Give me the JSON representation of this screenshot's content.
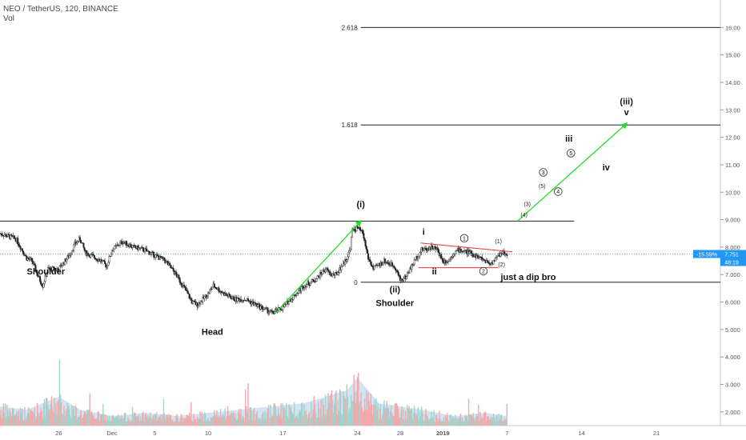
{
  "header": {
    "title": "NEO / TetherUS, 120, BINANCE",
    "indicator": "Vol"
  },
  "colors": {
    "up": "#26a69a",
    "down": "#222222",
    "fib": "#000000",
    "green_arrow": "#22dd22",
    "red_line": "#e53935",
    "price_badge": "#2196f3",
    "volume_area": "#c9dcf0",
    "vol_up": "#9fd4cf",
    "vol_down": "#f3a9a9"
  },
  "price_badges": {
    "change": "-15.59%",
    "price": "7.751",
    "countdown": "48:19"
  },
  "chart_data": {
    "type": "candlestick",
    "xlabel": "",
    "ylabel": "",
    "ylim": [
      1.5,
      17
    ],
    "yticks": [
      "2.000",
      "3.000",
      "4.000",
      "5.000",
      "6.000",
      "7.000",
      "8.000",
      "9.000",
      "10.00",
      "11.00",
      "12.00",
      "13.00",
      "14.00",
      "15.00",
      "16.00"
    ],
    "ytick_values": [
      2,
      3,
      4,
      5,
      6,
      7,
      8,
      9,
      10,
      11,
      12,
      13,
      14,
      15,
      16
    ],
    "xticks": [
      "26",
      "Dec",
      "5",
      "10",
      "17",
      "24",
      "28",
      "2019",
      "7",
      "14",
      "21"
    ],
    "xtick_days": [
      -5,
      0,
      4,
      9,
      16,
      23,
      27,
      31,
      37,
      44,
      51
    ],
    "xlim_days": [
      -10.5,
      57
    ],
    "price_path": [
      [
        -10.5,
        8.5
      ],
      [
        -9,
        8.3
      ],
      [
        -8,
        7.6
      ],
      [
        -7.5,
        7.5
      ],
      [
        -7,
        7.0
      ],
      [
        -6.5,
        6.6
      ],
      [
        -6,
        7.2
      ],
      [
        -5,
        7.2
      ],
      [
        -4,
        7.7
      ],
      [
        -3.5,
        8.1
      ],
      [
        -3,
        8.3
      ],
      [
        -2.5,
        7.8
      ],
      [
        -1,
        7.5
      ],
      [
        -0.5,
        7.3
      ],
      [
        0,
        7.9
      ],
      [
        1,
        8.2
      ],
      [
        2,
        8.0
      ],
      [
        3,
        7.9
      ],
      [
        4,
        7.7
      ],
      [
        5,
        7.5
      ],
      [
        6,
        7.0
      ],
      [
        6.8,
        6.5
      ],
      [
        7.5,
        6.0
      ],
      [
        8,
        5.9
      ],
      [
        9,
        6.3
      ],
      [
        9.5,
        6.6
      ],
      [
        10.5,
        6.3
      ],
      [
        11.5,
        6.1
      ],
      [
        12.5,
        6.1
      ],
      [
        13.5,
        5.9
      ],
      [
        15,
        5.6
      ],
      [
        16,
        5.8
      ],
      [
        17,
        6.2
      ],
      [
        18,
        6.6
      ],
      [
        19,
        6.8
      ],
      [
        20,
        7.2
      ],
      [
        20.5,
        7.0
      ],
      [
        21,
        7.0
      ],
      [
        21.5,
        7.3
      ],
      [
        22,
        7.6
      ],
      [
        22.3,
        7.9
      ],
      [
        22.5,
        8.6
      ],
      [
        23,
        8.7
      ],
      [
        23.5,
        8.5
      ],
      [
        24,
        7.6
      ],
      [
        24.5,
        7.2
      ],
      [
        25.5,
        7.5
      ],
      [
        26.5,
        7.3
      ],
      [
        27,
        6.8
      ],
      [
        27.5,
        6.9
      ],
      [
        28.5,
        7.6
      ],
      [
        29,
        7.9
      ],
      [
        30,
        8.0
      ],
      [
        30.5,
        7.9
      ],
      [
        31,
        7.5
      ],
      [
        31.5,
        7.5
      ],
      [
        32,
        7.8
      ],
      [
        32.5,
        7.9
      ],
      [
        33.5,
        7.8
      ],
      [
        34.5,
        7.6
      ],
      [
        35.5,
        7.4
      ],
      [
        36,
        7.6
      ],
      [
        36.5,
        7.8
      ],
      [
        37,
        7.75
      ]
    ],
    "fib_levels": [
      {
        "label": "2.618",
        "value": 16.0,
        "x_from": 23.3,
        "x_to": 57
      },
      {
        "label": "1.618",
        "value": 12.45,
        "x_from": 23.3,
        "x_to": 57
      },
      {
        "label": "",
        "value": 8.95,
        "x_from": -10.5,
        "x_to": 43.3
      },
      {
        "label": "0",
        "value": 6.72,
        "x_from": 23.3,
        "x_to": 57
      }
    ],
    "green_arrows": [
      {
        "x1": 15.2,
        "y1": 5.55,
        "x2": 23.3,
        "y2": 8.95
      },
      {
        "x1": 38,
        "y1": 8.95,
        "x2": 48.2,
        "y2": 12.5
      }
    ],
    "red_lines": [
      {
        "x1": 28.9,
        "y1": 8.15,
        "x2": 37.5,
        "y2": 7.83
      },
      {
        "x1": 28.7,
        "y1": 7.25,
        "x2": 36.2,
        "y2": 7.25
      }
    ],
    "annotations": [
      {
        "text": "Shoulder",
        "x": -6.2,
        "y": 7.0
      },
      {
        "text": "Head",
        "x": 9.4,
        "y": 4.8
      },
      {
        "text": "(i)",
        "x": 23.3,
        "y": 9.45
      },
      {
        "text": "(ii)",
        "x": 26.5,
        "y": 6.35
      },
      {
        "text": "Shoulder",
        "x": 26.5,
        "y": 5.85
      },
      {
        "text": "i",
        "x": 29.2,
        "y": 8.45
      },
      {
        "text": "ii",
        "x": 30.2,
        "y": 7.0
      },
      {
        "text": "just a dip bro",
        "x": 39,
        "y": 6.8
      },
      {
        "text": "iii",
        "x": 42.8,
        "y": 11.85
      },
      {
        "text": "iv",
        "x": 46.3,
        "y": 10.8
      },
      {
        "text": "(iii)",
        "x": 48.2,
        "y": 13.2
      },
      {
        "text": "v",
        "x": 48.2,
        "y": 12.8
      }
    ],
    "wave_labels_small": [
      {
        "text": "(1)",
        "x": 36.2,
        "y": 8.15
      },
      {
        "text": "(2)",
        "x": 36.5,
        "y": 7.3
      },
      {
        "text": "(3)",
        "x": 38.9,
        "y": 9.5
      },
      {
        "text": "(4)",
        "x": 38.6,
        "y": 9.1
      },
      {
        "text": "(5)",
        "x": 40.3,
        "y": 10.15
      }
    ],
    "wave_labels_circled": [
      {
        "text": "1",
        "x": 33,
        "y": 8.25
      },
      {
        "text": "2",
        "x": 34.8,
        "y": 7.05
      },
      {
        "text": "3",
        "x": 40.4,
        "y": 10.65
      },
      {
        "text": "4",
        "x": 41.8,
        "y": 9.95
      },
      {
        "text": "5",
        "x": 43.0,
        "y": 11.35
      }
    ],
    "volume_profile": [
      [
        -10.5,
        0.3
      ],
      [
        -8,
        0.25
      ],
      [
        -5,
        0.45
      ],
      [
        -3,
        0.25
      ],
      [
        0,
        0.15
      ],
      [
        3,
        0.2
      ],
      [
        6,
        0.15
      ],
      [
        9,
        0.2
      ],
      [
        12,
        0.25
      ],
      [
        15,
        0.3
      ],
      [
        18,
        0.35
      ],
      [
        20,
        0.45
      ],
      [
        22,
        0.55
      ],
      [
        23,
        0.75
      ],
      [
        24,
        0.55
      ],
      [
        25,
        0.35
      ],
      [
        27,
        0.3
      ],
      [
        29,
        0.25
      ],
      [
        32,
        0.15
      ],
      [
        35,
        0.2
      ],
      [
        37,
        0.15
      ]
    ]
  }
}
